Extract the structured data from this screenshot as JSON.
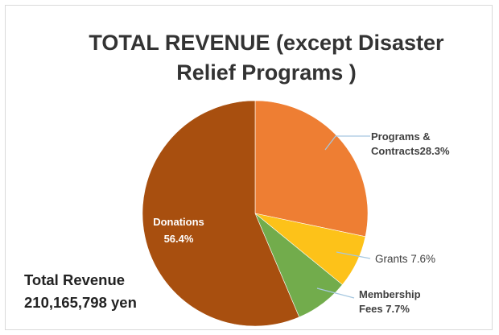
{
  "title": {
    "line1": "TOTAL REVENUE (except Disaster",
    "line2": "Relief Programs )"
  },
  "total": {
    "label": "Total Revenue",
    "value": "210,165,798 yen"
  },
  "colors": {
    "programs_contracts": "#ee7e33",
    "grants": "#fdc219",
    "membership_fees": "#72ac4c",
    "donations": "#a84f0f",
    "leader_lines": "#a6c8e0"
  },
  "labels": {
    "programs_l1": "Programs &",
    "programs_l2": "Contracts28.3%",
    "grants": "Grants  7.6%",
    "membership_l1": "Membership",
    "membership_l2": "Fees 7.7%",
    "donations_l1": "Donations",
    "donations_l2": "56.4%"
  },
  "chart_data": {
    "type": "pie",
    "title": "TOTAL REVENUE (except Disaster Relief Programs )",
    "categories": [
      "Programs & Contracts",
      "Grants",
      "Membership Fees",
      "Donations"
    ],
    "values": [
      28.3,
      7.6,
      7.7,
      56.4
    ],
    "unit": "%",
    "start": "top (12 o'clock), clockwise",
    "legend": "none (data labels)"
  }
}
